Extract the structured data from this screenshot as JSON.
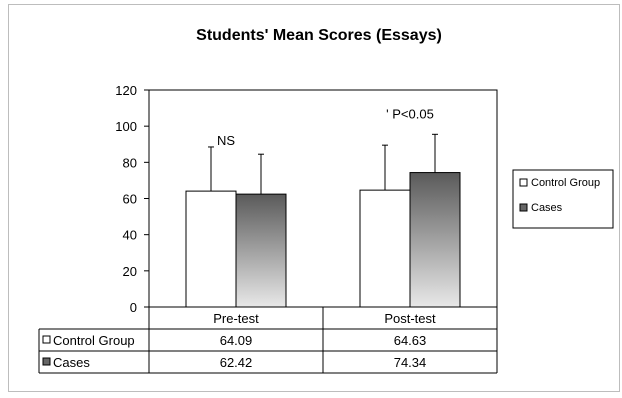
{
  "chart_data": {
    "type": "bar",
    "title": "Students' Mean Scores (Essays)",
    "categories": [
      "Pre-test",
      "Post-test"
    ],
    "series": [
      {
        "name": "Control Group",
        "values": [
          64.09,
          64.63
        ],
        "error_upper": [
          88.5,
          89.5
        ],
        "color": "#ffffff"
      },
      {
        "name": "Cases",
        "values": [
          62.42,
          74.34
        ],
        "error_upper": [
          84.5,
          95.5
        ],
        "color": "#666666"
      }
    ],
    "annotations": [
      "NS",
      "' P<0.05"
    ],
    "ylim": [
      0,
      120
    ],
    "yticks": [
      "0",
      "20",
      "40",
      "60",
      "80",
      "100",
      "120"
    ],
    "data_table": true,
    "legend_position": "right",
    "grid": false
  }
}
